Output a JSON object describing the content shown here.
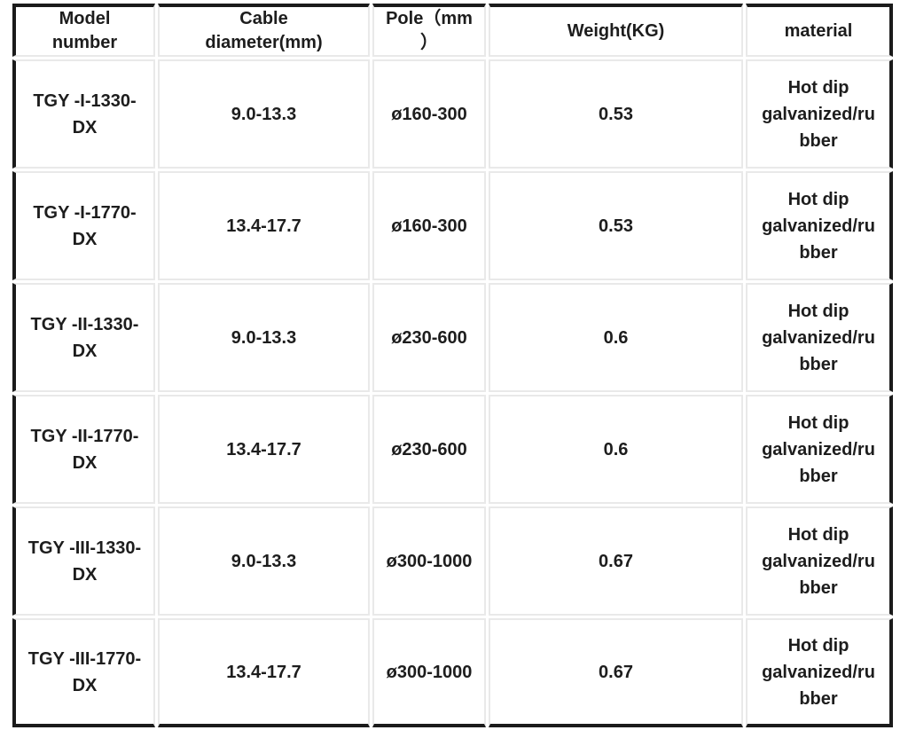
{
  "colors": {
    "background": "#ffffff",
    "text": "#1d1d1d",
    "outer_frame": "#1b1b1b",
    "inner_cell_border": "#e9e9e9"
  },
  "table": {
    "columns": [
      {
        "key": "model",
        "label": "Model\nnumber"
      },
      {
        "key": "cable_diameter",
        "label": "Cable\ndiameter(mm)"
      },
      {
        "key": "pole",
        "label": "Pole（mm\n）"
      },
      {
        "key": "weight",
        "label": "Weight(KG)"
      },
      {
        "key": "material",
        "label": "material"
      }
    ],
    "rows": [
      {
        "model": "TGY -I-1330-\nDX",
        "cable_diameter": "9.0-13.3",
        "pole": "ø160-300",
        "weight": "0.53",
        "material": "Hot dip\ngalvanized/ru\nbber"
      },
      {
        "model": "TGY -I-1770-\nDX",
        "cable_diameter": "13.4-17.7",
        "pole": "ø160-300",
        "weight": "0.53",
        "material": "Hot dip\ngalvanized/ru\nbber"
      },
      {
        "model": "TGY -II-1330-\nDX",
        "cable_diameter": "9.0-13.3",
        "pole": "ø230-600",
        "weight": "0.6",
        "material": "Hot dip\ngalvanized/ru\nbber"
      },
      {
        "model": "TGY -II-1770-\nDX",
        "cable_diameter": "13.4-17.7",
        "pole": "ø230-600",
        "weight": "0.6",
        "material": "Hot dip\ngalvanized/ru\nbber"
      },
      {
        "model": "TGY -III-1330-\nDX",
        "cable_diameter": "9.0-13.3",
        "pole": "ø300-1000",
        "weight": "0.67",
        "material": "Hot dip\ngalvanized/ru\nbber"
      },
      {
        "model": "TGY -III-1770-\nDX",
        "cable_diameter": "13.4-17.7",
        "pole": "ø300-1000",
        "weight": "0.67",
        "material": "Hot dip\ngalvanized/ru\nbber"
      }
    ]
  }
}
